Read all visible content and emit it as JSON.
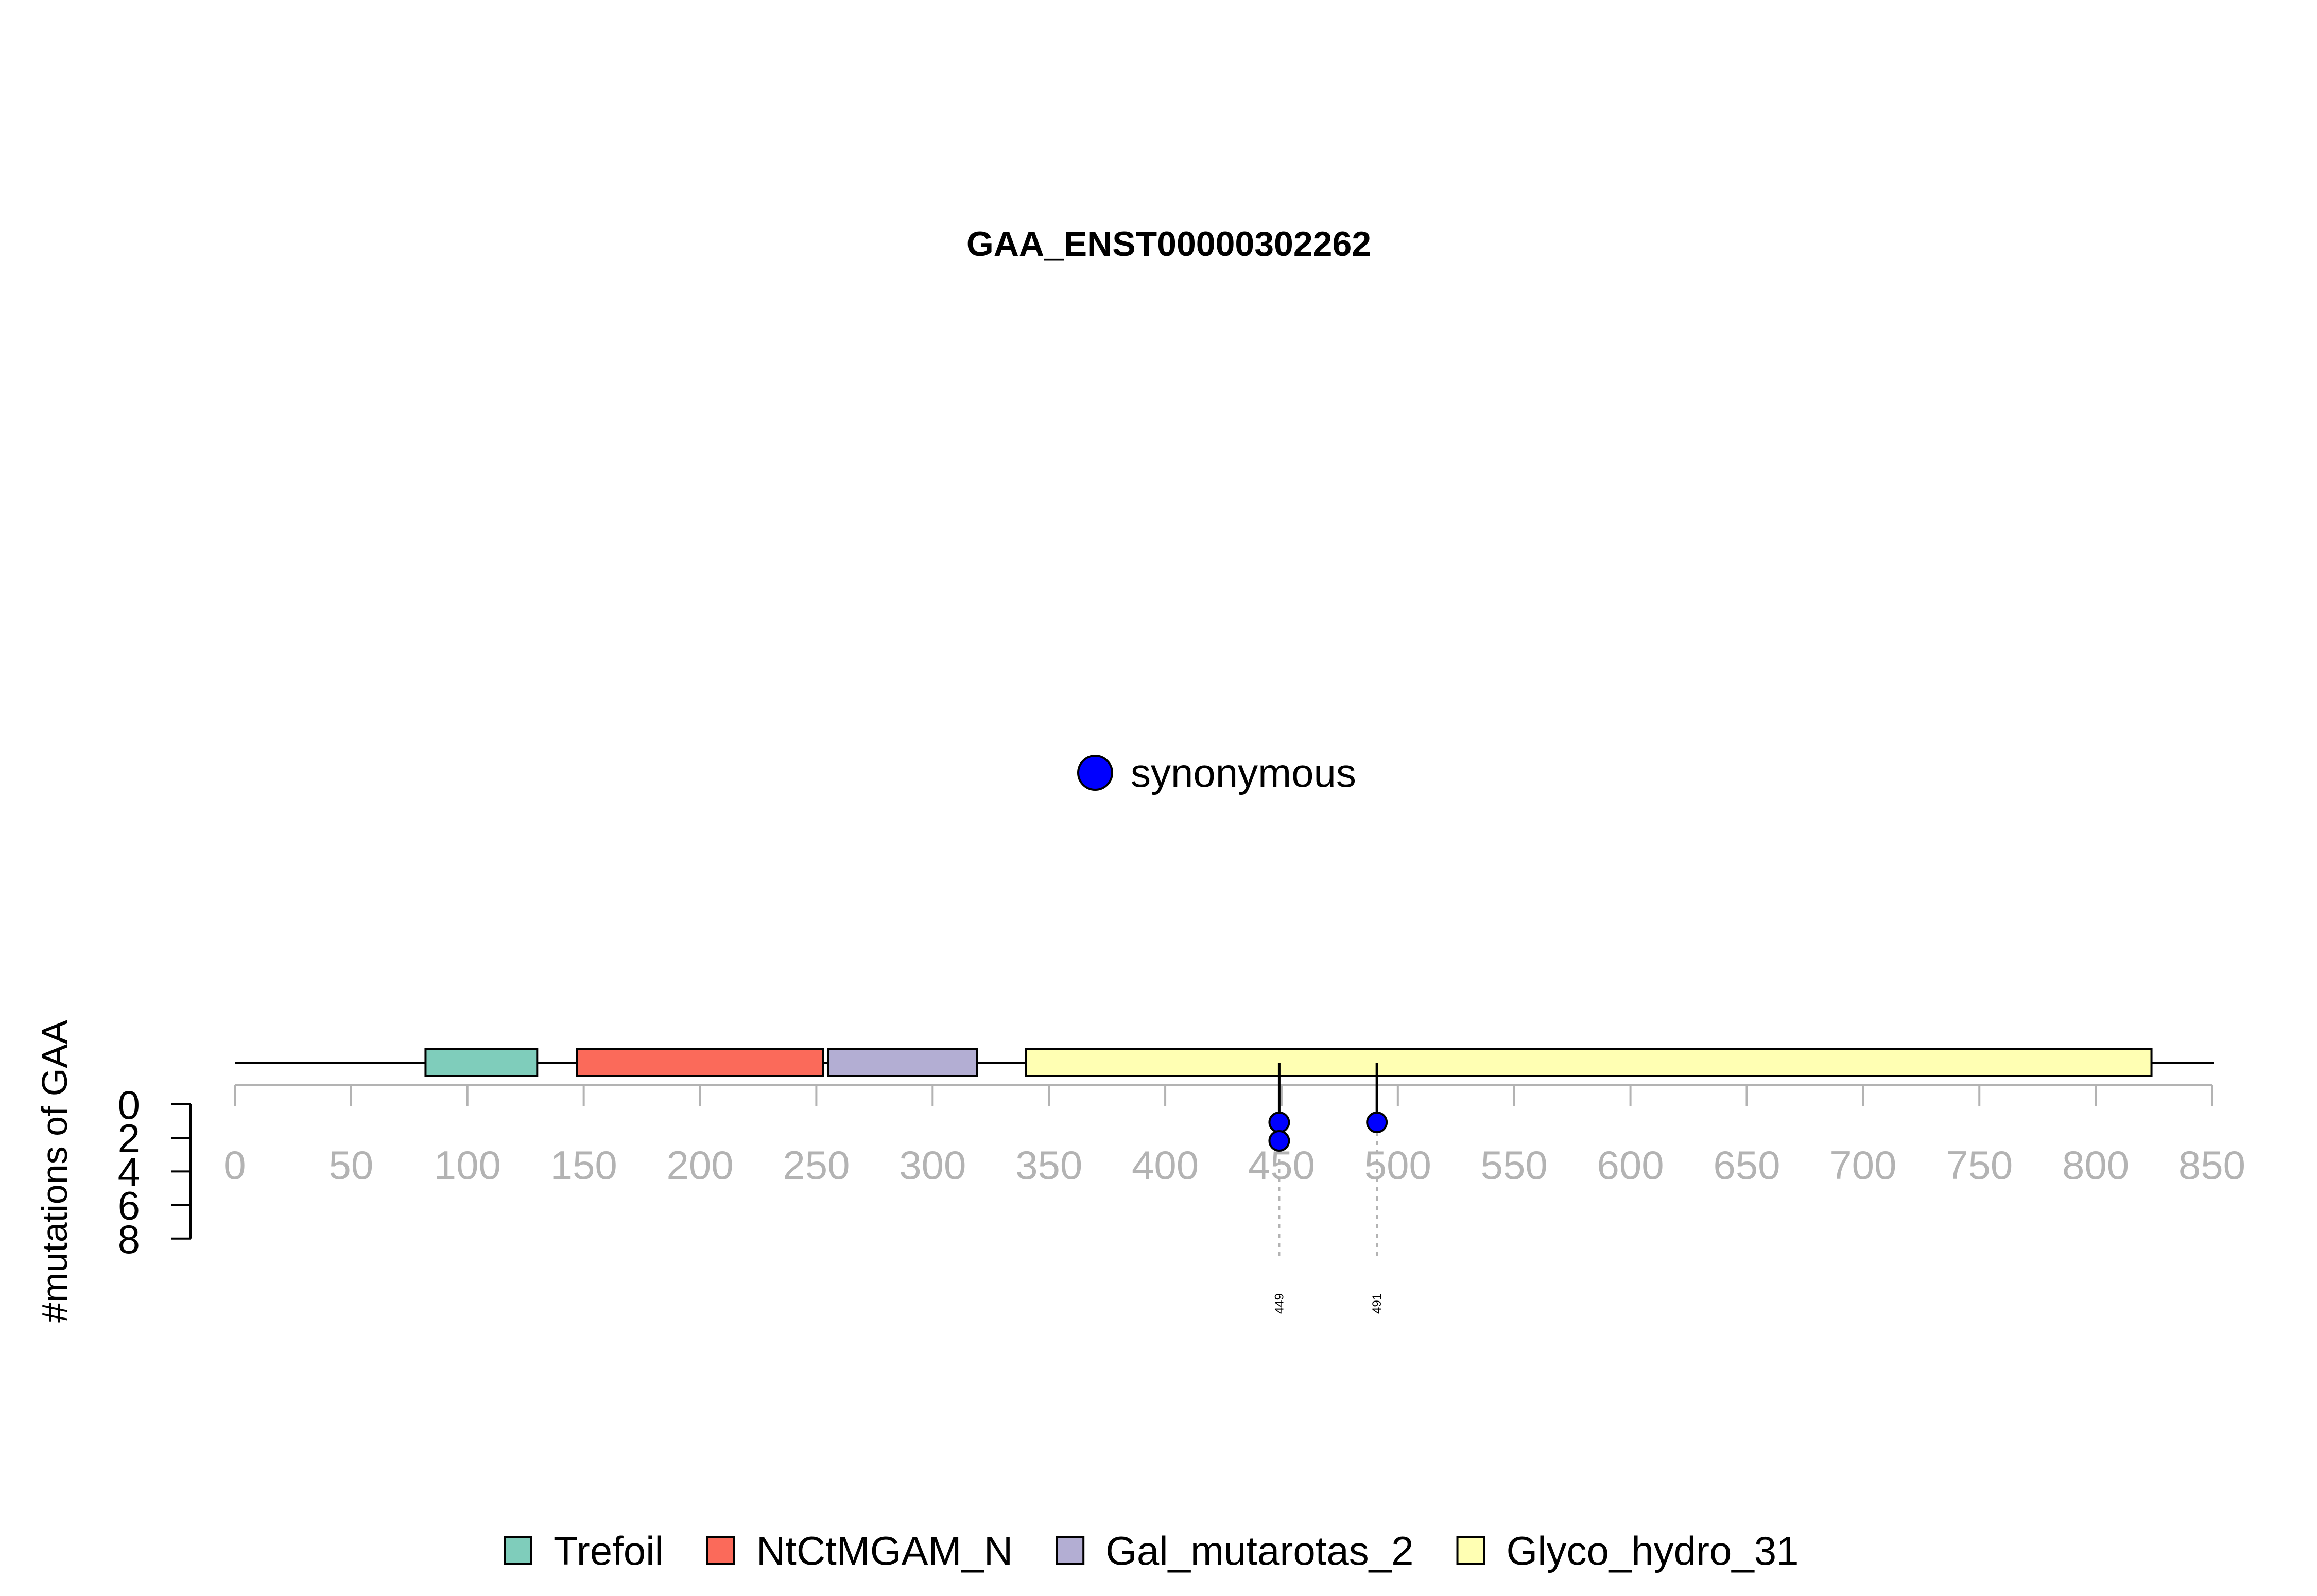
{
  "chart_data": {
    "type": "lollipop",
    "title": "GAA_ENST00000302262",
    "ylabel": "#mutations of GAA",
    "xlim": [
      0,
      850
    ],
    "x_ticks": [
      0,
      50,
      100,
      150,
      200,
      250,
      300,
      350,
      400,
      450,
      500,
      550,
      600,
      650,
      700,
      750,
      800,
      850
    ],
    "y_ticks": [
      0,
      2,
      4,
      6,
      8
    ],
    "ylim": [
      0,
      8
    ],
    "protein_length": 952,
    "domains": [
      {
        "name": "Trefoil",
        "start": 82,
        "end": 130,
        "color": "#7fcdbb"
      },
      {
        "name": "NtCtMGAM_N",
        "start": 147,
        "end": 253,
        "color": "#fb6a5a"
      },
      {
        "name": "Gal_mutarotas_2",
        "start": 255,
        "end": 319,
        "color": "#b3aed3"
      },
      {
        "name": "Glyco_hydro_31",
        "start": 340,
        "end": 824,
        "color": "#ffffb3"
      }
    ],
    "mutations": [
      {
        "position": 449,
        "count": 2,
        "type": "synonymous",
        "label": "449"
      },
      {
        "position": 491,
        "count": 1,
        "type": "synonymous",
        "label": "491"
      }
    ],
    "mutation_legend": [
      {
        "label": "synonymous",
        "color": "#0000ff"
      }
    ],
    "domain_legend_placement": "bottom-center",
    "mutation_legend_placement": "center"
  }
}
